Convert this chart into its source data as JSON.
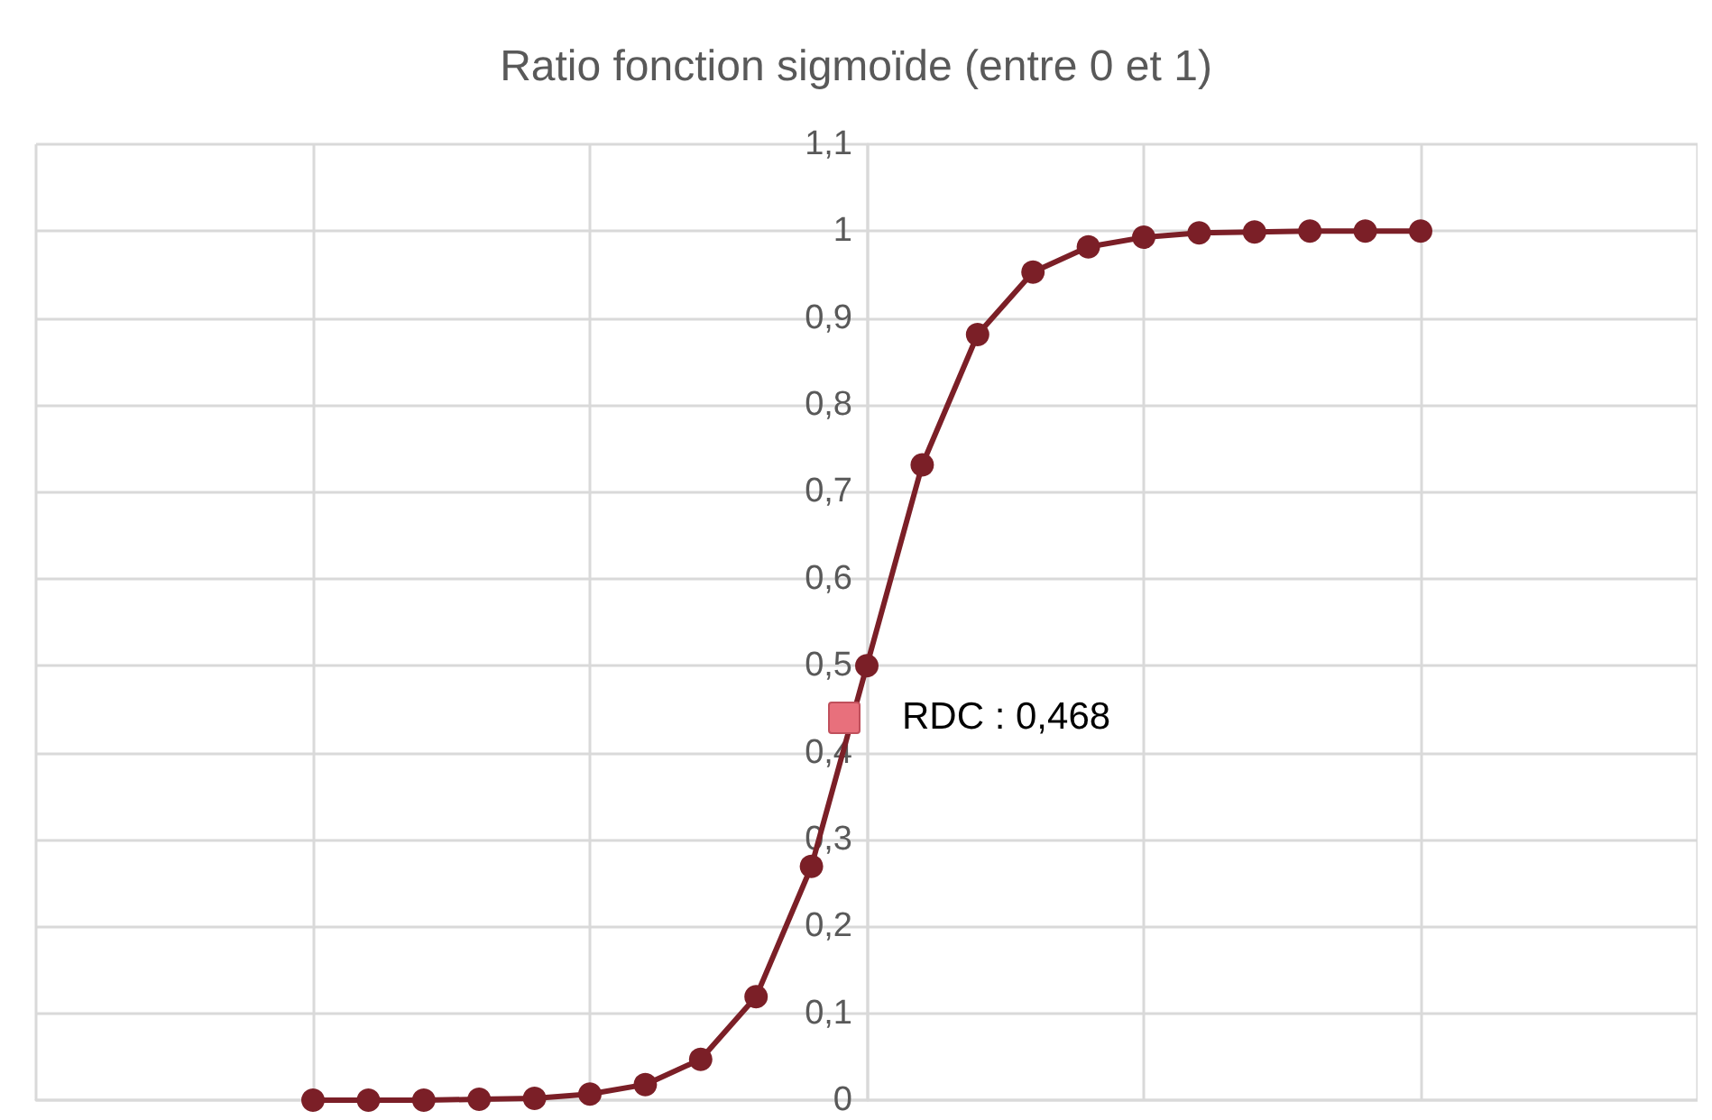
{
  "chart_data": {
    "type": "line",
    "title": "Ratio fonction sigmoïde (entre 0 et 1)",
    "categories": [
      null,
      null,
      null,
      null,
      null,
      null,
      null,
      null,
      null,
      null,
      null,
      null,
      null,
      null,
      null,
      null,
      null,
      null,
      null,
      null,
      null,
      null,
      null,
      null,
      null,
      null,
      null,
      null,
      null,
      null,
      null
    ],
    "series": [
      {
        "color": "#7b1f27",
        "values": [
          null,
          null,
          null,
          null,
          null,
          0.0,
          0.0,
          0.0,
          0.001,
          0.002,
          0.007,
          0.018,
          0.047,
          0.119,
          0.269,
          0.5,
          0.731,
          0.881,
          0.953,
          0.982,
          0.993,
          0.998,
          0.999,
          1.0,
          1.0,
          1.0,
          null,
          null,
          null,
          null,
          null
        ]
      }
    ],
    "annotations": [
      "RDC : 0,468"
    ],
    "marker": "circle",
    "line_style": "solid",
    "ylim": [
      0,
      1.1
    ],
    "yticks": [
      {
        "value": 0,
        "label": "0"
      },
      {
        "value": 0.1,
        "label": "0,1"
      },
      {
        "value": 0.2,
        "label": "0,2"
      },
      {
        "value": 0.3,
        "label": "0,3"
      },
      {
        "value": 0.4,
        "label": "0,4"
      },
      {
        "value": 0.5,
        "label": "0,5"
      },
      {
        "value": 0.6,
        "label": "0,6"
      },
      {
        "value": 0.7,
        "label": "0,7"
      },
      {
        "value": 0.8,
        "label": "0,8"
      },
      {
        "value": 0.9,
        "label": "0,9"
      },
      {
        "value": 1,
        "label": "1"
      },
      {
        "value": 1.1,
        "label": "1,1"
      }
    ],
    "tick_labels": "y",
    "grid": true
  }
}
